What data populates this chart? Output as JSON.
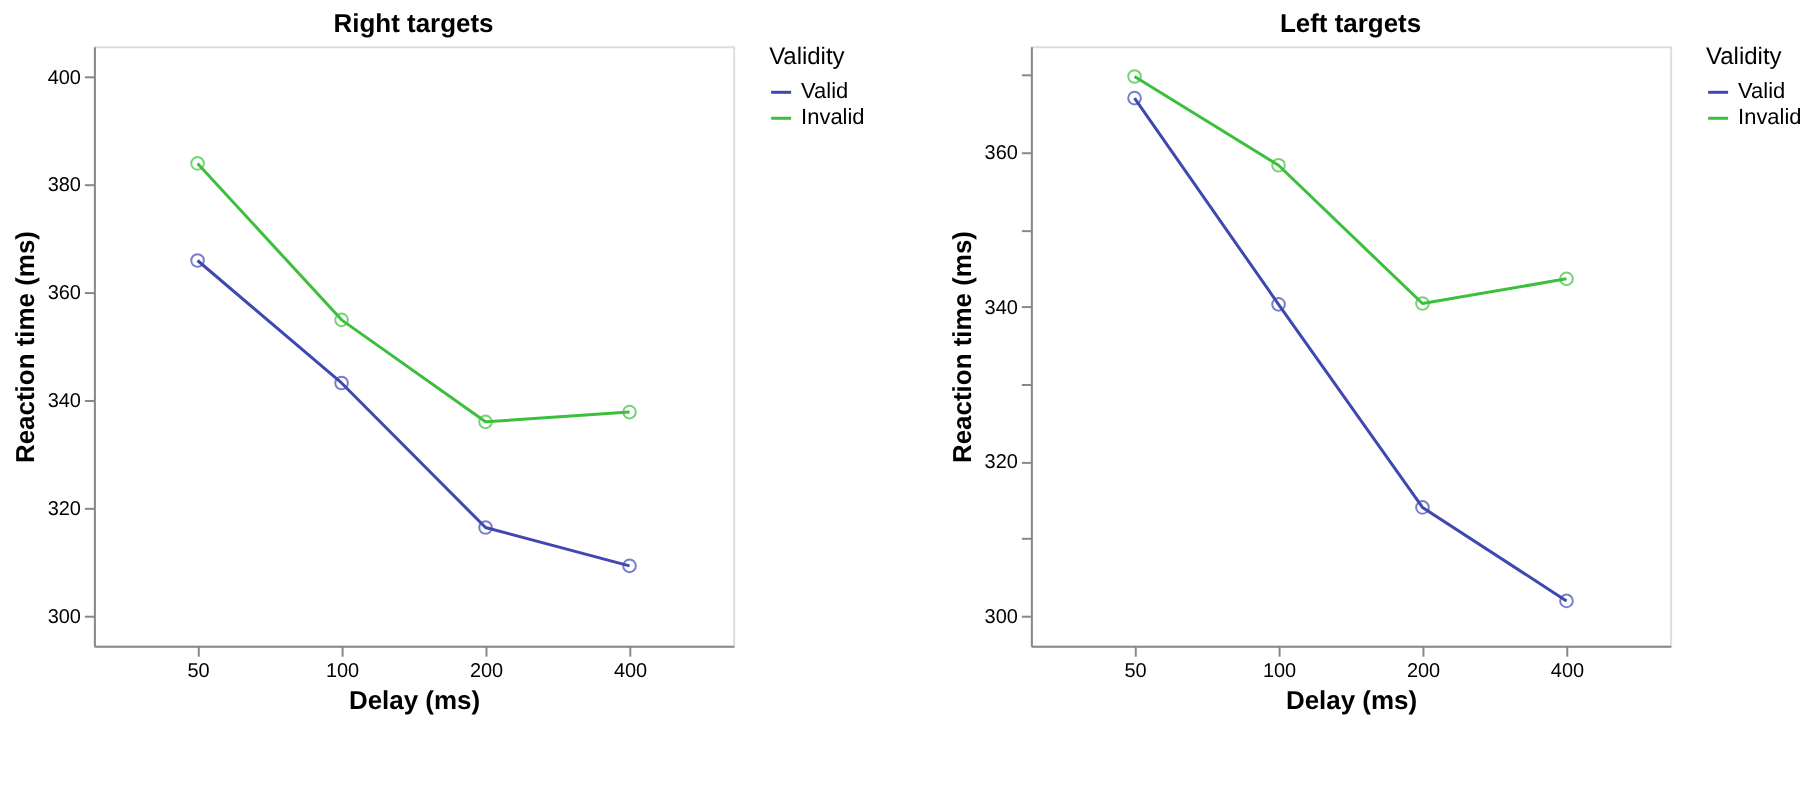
{
  "chart_data": [
    {
      "type": "line",
      "title": "Right targets",
      "xlabel": "Delay (ms)",
      "ylabel": "Reaction time (ms)",
      "legend_title": "Validity",
      "legend": "top right",
      "marker": "circle",
      "grid": false,
      "categories": [
        "50",
        "100",
        "200",
        "400"
      ],
      "ylim": [
        294.5,
        405.6
      ],
      "yticks": [
        300,
        320,
        340,
        360,
        380,
        400
      ],
      "series": [
        {
          "name": "Valid",
          "color": "#3f48b0",
          "values": [
            365.9,
            343.2,
            316.4,
            309.3
          ]
        },
        {
          "name": "Invalid",
          "color": "#3cbf3c",
          "values": [
            383.9,
            354.9,
            336.0,
            337.8
          ]
        }
      ]
    },
    {
      "type": "line",
      "title": "Left targets",
      "xlabel": "Delay (ms)",
      "ylabel": "Reaction time (ms)",
      "legend_title": "Validity",
      "legend": "top right",
      "marker": "circle",
      "grid": false,
      "categories": [
        "50",
        "100",
        "200",
        "400"
      ],
      "ylim": [
        296.1,
        373.7
      ],
      "yticks": [
        300,
        {
          "value": 310,
          "label": null
        },
        320,
        {
          "value": 330,
          "label": null
        },
        340,
        {
          "value": 350,
          "label": null
        },
        360,
        {
          "value": 370,
          "label": null
        }
      ],
      "series": [
        {
          "name": "Valid",
          "color": "#3f48b0",
          "values": [
            367.0,
            340.3,
            314.0,
            301.9
          ]
        },
        {
          "name": "Invalid",
          "color": "#3cbf3c",
          "values": [
            369.8,
            358.3,
            340.4,
            343.6
          ]
        }
      ]
    }
  ]
}
